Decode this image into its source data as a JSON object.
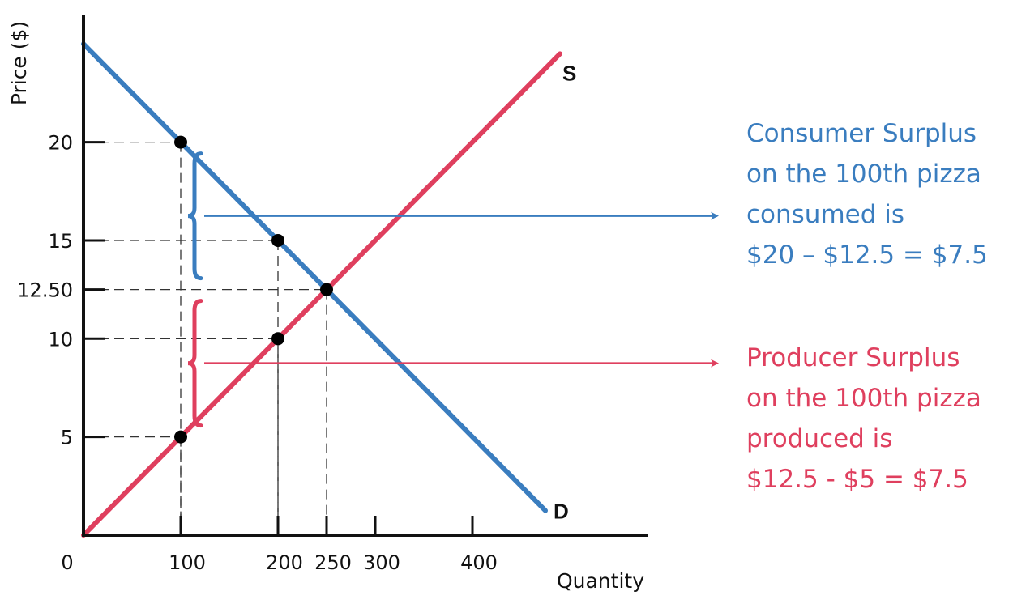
{
  "chart_data": {
    "type": "line",
    "title": "",
    "xlabel": "Quantity",
    "ylabel": "Price ($)",
    "x_ticks": [
      100,
      200,
      250,
      300,
      400
    ],
    "x_origin_label": "0",
    "y_ticks": [
      {
        "value": 5,
        "label": "5"
      },
      {
        "value": 10,
        "label": "10"
      },
      {
        "value": 12.5,
        "label": "12.50"
      },
      {
        "value": 15,
        "label": "15"
      },
      {
        "value": 20,
        "label": "20"
      }
    ],
    "series": [
      {
        "name": "D",
        "color": "#3a7dbf",
        "points": [
          [
            0,
            25
          ],
          [
            475,
            1.25
          ]
        ]
      },
      {
        "name": "S",
        "color": "#df3f5e",
        "points": [
          [
            0,
            0
          ],
          [
            490,
            24.5
          ]
        ]
      }
    ],
    "highlighted_points": [
      {
        "x": 100,
        "y": 20
      },
      {
        "x": 200,
        "y": 15
      },
      {
        "x": 250,
        "y": 12.5
      },
      {
        "x": 200,
        "y": 10
      },
      {
        "x": 100,
        "y": 5
      }
    ],
    "annotations": [
      {
        "name": "consumer-surplus",
        "color": "#3a7dbf",
        "range": [
          12.5,
          20
        ],
        "at_x": 100,
        "lines": [
          "Consumer Surplus",
          "on the 100th pizza",
          "consumed is",
          "$20 – $12.5 = $7.5"
        ]
      },
      {
        "name": "producer-surplus",
        "color": "#df3f5e",
        "range": [
          5,
          12.5
        ],
        "at_x": 100,
        "lines": [
          "Producer Surplus",
          "on the 100th pizza",
          "produced is",
          "$12.5 - $5 = $7.5"
        ]
      }
    ],
    "grid": false
  }
}
